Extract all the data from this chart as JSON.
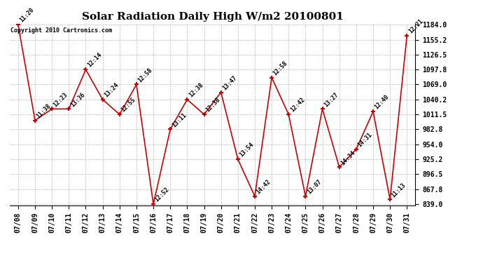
{
  "title": "Solar Radiation Daily High W/m2 20100801",
  "copyright": "Copyright 2010 Cartronics.com",
  "dates": [
    "07/08",
    "07/09",
    "07/10",
    "07/11",
    "07/12",
    "07/13",
    "07/14",
    "07/15",
    "07/16",
    "07/17",
    "07/18",
    "07/19",
    "07/20",
    "07/21",
    "07/22",
    "07/23",
    "07/24",
    "07/25",
    "07/26",
    "07/27",
    "07/28",
    "07/29",
    "07/30",
    "07/31"
  ],
  "values": [
    1184.0,
    1000.0,
    1022.0,
    1022.0,
    1097.8,
    1040.2,
    1011.5,
    1069.0,
    839.0,
    982.8,
    1040.2,
    1011.5,
    1054.0,
    925.2,
    854.0,
    1082.4,
    1011.5,
    854.0,
    1022.0,
    910.0,
    944.6,
    1017.0,
    848.0,
    1163.0
  ],
  "labels": [
    "11:20",
    "11:38",
    "12:23",
    "13:36",
    "12:14",
    "13:24",
    "12:55",
    "12:58",
    "12:52",
    "13:11",
    "12:38",
    "12:38",
    "13:47",
    "13:54",
    "14:42",
    "12:58",
    "12:42",
    "13:07",
    "13:27",
    "14:34",
    "14:31",
    "12:40",
    "11:13",
    "12:21"
  ],
  "ymin": 839.0,
  "ymax": 1184.0,
  "ytick_values": [
    839.0,
    867.8,
    896.5,
    925.2,
    954.0,
    982.8,
    1011.5,
    1040.2,
    1069.0,
    1097.8,
    1126.5,
    1155.2,
    1184.0
  ],
  "ytick_labels": [
    "839.0",
    "867.8",
    "896.5",
    "925.2",
    "954.0",
    "982.8",
    "1011.5",
    "1040.2",
    "1069.0",
    "1097.8",
    "1126.5",
    "1155.2",
    "1184.0"
  ],
  "line_color": "#cc0000",
  "bg_color": "#ffffff",
  "grid_color": "#bbbbbb",
  "title_fontsize": 11,
  "annot_fontsize": 6,
  "tick_fontsize": 7,
  "copy_fontsize": 6
}
